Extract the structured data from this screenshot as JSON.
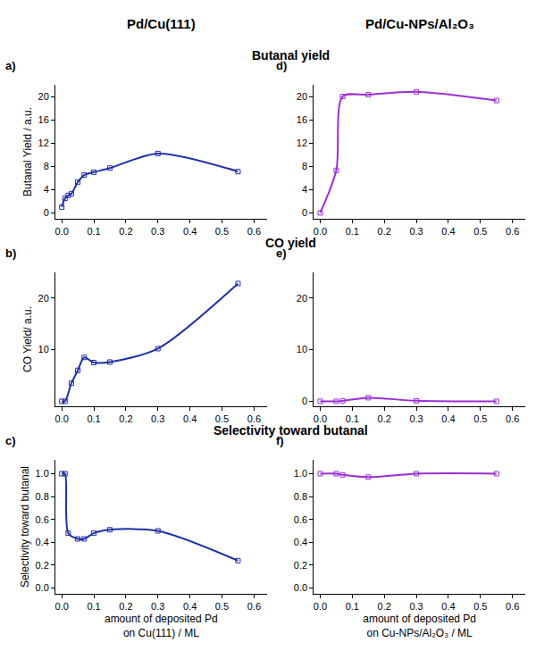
{
  "column_titles": [
    "Pd/Cu(111)",
    "Pd/Cu-NPs/Al₂O₃"
  ],
  "row_titles": [
    "Butanal yield",
    "CO yield",
    "Selectivity toward butanal"
  ],
  "chart_data": [
    {
      "type": "line",
      "panel": "a)",
      "ylabel": "Butanal Yield / a.u.",
      "x": [
        0,
        0.01,
        0.02,
        0.03,
        0.05,
        0.07,
        0.1,
        0.15,
        0.3,
        0.55
      ],
      "series": [
        {
          "color": "#1f2fa8",
          "marker": "square-open",
          "line_style": "solid",
          "values": [
            1,
            2.5,
            3,
            3.3,
            5.3,
            6.5,
            7,
            7.7,
            10.2,
            7.1
          ]
        }
      ],
      "xlim": [
        -0.02,
        0.64
      ],
      "xticks": [
        {
          "value": 0,
          "label": "0.0"
        },
        0.1,
        0.2,
        0.3,
        0.4,
        0.5,
        0.6
      ],
      "ylim": [
        -1,
        22
      ],
      "yticks": [
        0,
        4,
        8,
        12,
        16,
        20
      ],
      "grid": false
    },
    {
      "type": "line",
      "panel": "b)",
      "ylabel": "CO Yield/ a.u.",
      "x": [
        0,
        0.01,
        0.03,
        0.05,
        0.07,
        0.1,
        0.15,
        0.3,
        0.55
      ],
      "series": [
        {
          "color": "#1f2fa8",
          "marker": "square-open",
          "line_style": "solid",
          "values": [
            0,
            0,
            3.5,
            6,
            8.5,
            7.5,
            7.6,
            10.2,
            22.8
          ]
        }
      ],
      "xlim": [
        -0.02,
        0.64
      ],
      "xticks": [
        {
          "value": 0,
          "label": "0.0"
        },
        0.1,
        0.2,
        0.3,
        0.4,
        0.5,
        0.6
      ],
      "ylim": [
        -1,
        25
      ],
      "yticks": [
        10,
        20
      ],
      "grid": false
    },
    {
      "type": "line",
      "panel": "c)",
      "ylabel": "Selectivity toward butanal",
      "xlabel": "amount of deposited Pd on Cu(111) / ML",
      "x": [
        0,
        0.01,
        0.02,
        0.05,
        0.07,
        0.1,
        0.15,
        0.3,
        0.55
      ],
      "series": [
        {
          "color": "#1f2fa8",
          "marker": "square-open",
          "line_style": "solid",
          "values": [
            1,
            1,
            0.48,
            0.43,
            0.43,
            0.48,
            0.51,
            0.5,
            0.24
          ]
        }
      ],
      "xlim": [
        -0.02,
        0.64
      ],
      "xticks": [
        {
          "value": 0,
          "label": "0.0"
        },
        0.1,
        0.2,
        0.3,
        0.4,
        0.5,
        0.6
      ],
      "ylim": [
        -0.05,
        1.12
      ],
      "yticks": [
        {
          "value": 0,
          "label": "0.0"
        },
        0.2,
        0.4,
        0.6,
        0.8,
        {
          "value": 1,
          "label": "1.0"
        }
      ],
      "grid": false
    },
    {
      "type": "line",
      "panel": "d)",
      "x": [
        0,
        0.05,
        0.07,
        0.15,
        0.3,
        0.55
      ],
      "series": [
        {
          "color": "#9a2fd6",
          "marker": "square-open",
          "line_style": "solid",
          "values": [
            0,
            7.3,
            20,
            20.3,
            20.8,
            19.3
          ]
        }
      ],
      "xlim": [
        -0.02,
        0.64
      ],
      "xticks": [
        {
          "value": 0,
          "label": "0.0"
        },
        0.1,
        0.2,
        0.3,
        0.4,
        0.5,
        0.6
      ],
      "ylim": [
        -1,
        22
      ],
      "yticks": [
        0,
        4,
        8,
        12,
        16,
        20
      ],
      "grid": false
    },
    {
      "type": "line",
      "panel": "e)",
      "x": [
        0,
        0.05,
        0.07,
        0.15,
        0.3,
        0.55
      ],
      "series": [
        {
          "color": "#9a2fd6",
          "marker": "square-open",
          "line_style": "solid",
          "values": [
            0,
            0,
            0.1,
            0.7,
            0.1,
            0
          ]
        }
      ],
      "xlim": [
        -0.02,
        0.64
      ],
      "xticks": [
        {
          "value": 0,
          "label": "0.0"
        },
        0.1,
        0.2,
        0.3,
        0.4,
        0.5,
        0.6
      ],
      "ylim": [
        -1,
        25
      ],
      "yticks": [
        0,
        10,
        20
      ],
      "grid": false
    },
    {
      "type": "line",
      "panel": "f)",
      "xlabel": "amount of deposited Pd on Cu-NPs/Al₂O₃ / ML",
      "x": [
        0,
        0.05,
        0.07,
        0.15,
        0.3,
        0.55
      ],
      "series": [
        {
          "color": "#9a2fd6",
          "marker": "square-open",
          "line_style": "solid",
          "values": [
            1,
            1,
            0.99,
            0.97,
            1,
            1
          ]
        }
      ],
      "xlim": [
        -0.02,
        0.64
      ],
      "xticks": [
        {
          "value": 0,
          "label": "0.0"
        },
        0.1,
        0.2,
        0.3,
        0.4,
        0.5,
        0.6
      ],
      "ylim": [
        -0.05,
        1.12
      ],
      "yticks": [
        {
          "value": 0,
          "label": "0.0"
        },
        0.2,
        0.4,
        0.6,
        0.8,
        {
          "value": 1,
          "label": "1.0"
        }
      ],
      "grid": false
    }
  ]
}
